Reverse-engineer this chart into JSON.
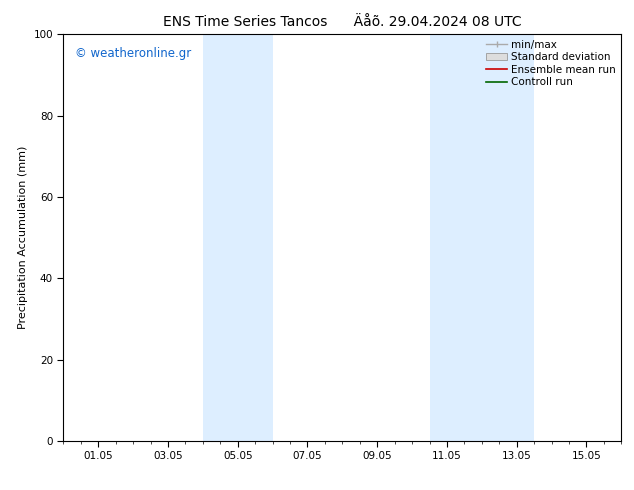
{
  "title": "ENS Time Series Tancos      Äåõ. 29.04.2024 08 UTC",
  "ylabel": "Precipitation Accumulation (mm)",
  "ylim": [
    0,
    100
  ],
  "xtick_labels": [
    "01.05",
    "03.05",
    "05.05",
    "07.05",
    "09.05",
    "11.05",
    "13.05",
    "15.05"
  ],
  "xtick_positions": [
    1,
    3,
    5,
    7,
    9,
    11,
    13,
    15
  ],
  "xlim": [
    0,
    16
  ],
  "shaded_bands": [
    {
      "x_start": 4.0,
      "x_end": 6.0
    },
    {
      "x_start": 10.5,
      "x_end": 13.5
    }
  ],
  "shaded_color": "#ddeeff",
  "watermark_text": "© weatheronline.gr",
  "watermark_color": "#1166cc",
  "background_color": "#ffffff",
  "title_fontsize": 10,
  "axis_label_fontsize": 8,
  "tick_fontsize": 7.5,
  "legend_fontsize": 7.5
}
